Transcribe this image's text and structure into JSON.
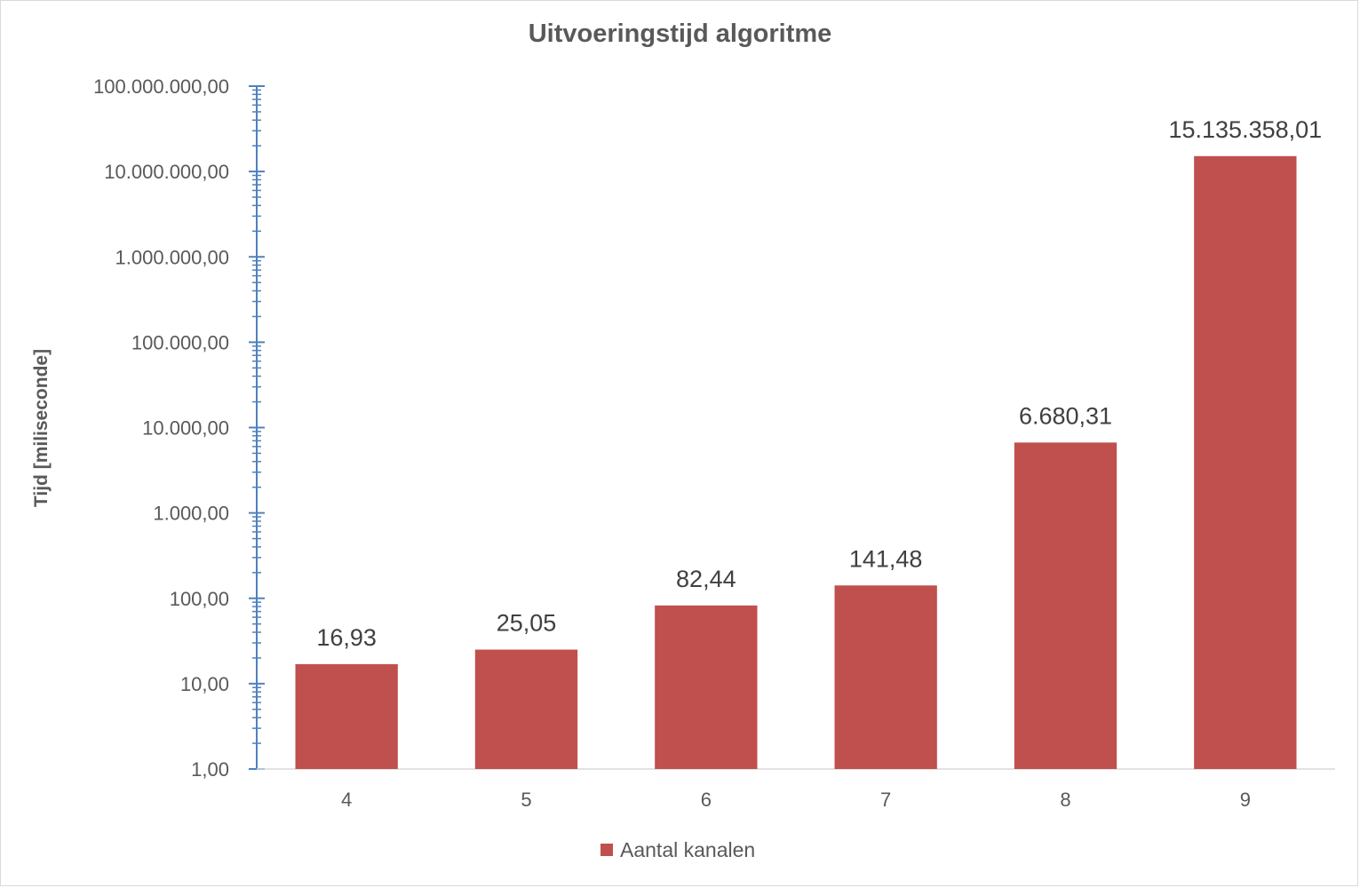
{
  "chart_data": {
    "type": "bar",
    "title": "Uitvoeringstijd algoritme",
    "xlabel": "",
    "ylabel": "Tijd [milisecon­de]",
    "y_scale": "log",
    "ylim": [
      1,
      100000000
    ],
    "y_tick_labels": [
      "1,00",
      "10,00",
      "100,00",
      "1.000,00",
      "10.000,00",
      "100.000,00",
      "1.000.000,00",
      "10.000.000,00",
      "100.000.000,00"
    ],
    "categories": [
      "4",
      "5",
      "6",
      "7",
      "8",
      "9"
    ],
    "series": [
      {
        "name": "Aantal kanalen",
        "color": "#c0504d",
        "values": [
          16.93,
          25.05,
          82.44,
          141.48,
          6680.31,
          15135358.01
        ],
        "labels": [
          "16,93",
          "25,05",
          "82,44",
          "141,48",
          "6.680,31",
          "15.135.358,01"
        ]
      }
    ],
    "grid": false,
    "legend_position": "bottom"
  }
}
